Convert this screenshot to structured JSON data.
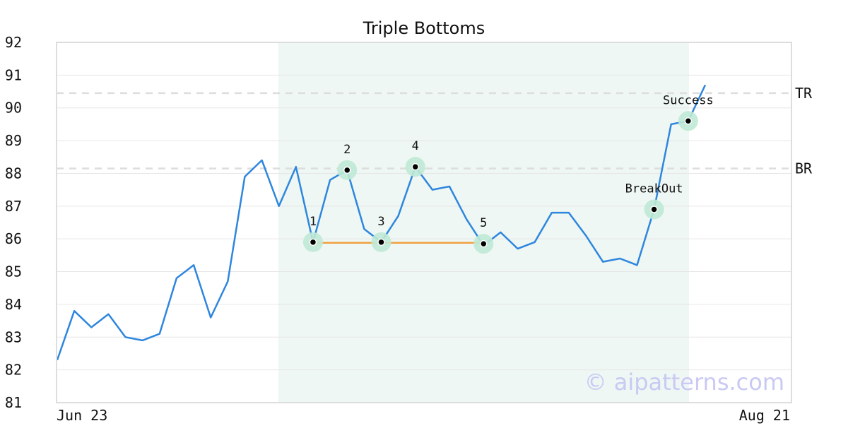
{
  "chart_data": {
    "type": "line",
    "title": "Triple Bottoms",
    "ylim": [
      81,
      92
    ],
    "yticks": [
      "81",
      "82",
      "83",
      "84",
      "85",
      "86",
      "87",
      "88",
      "89",
      "90",
      "91",
      "92"
    ],
    "xtick_labels": [
      "Jun 23",
      "Aug 21"
    ],
    "grid": true,
    "series": [
      {
        "color": "#2e86de",
        "values": [
          82.3,
          83.8,
          83.3,
          83.7,
          83.0,
          82.9,
          83.1,
          84.8,
          85.2,
          83.6,
          84.7,
          87.9,
          88.4,
          87.0,
          88.2,
          85.9,
          87.8,
          88.1,
          86.3,
          85.9,
          86.7,
          88.2,
          87.5,
          87.6,
          86.6,
          85.8,
          86.2,
          85.7,
          85.9,
          86.8,
          86.8,
          86.1,
          85.3,
          85.4,
          85.2,
          86.9,
          89.5,
          89.6,
          90.7
        ]
      }
    ],
    "highlight_region": {
      "start_index": 13,
      "end_index": 37,
      "color": "#eef7f3"
    },
    "reference_lines": [
      {
        "label": "TR",
        "value": 90.45
      },
      {
        "label": "BR",
        "value": 88.15
      }
    ],
    "support_line": {
      "start_index": 15,
      "end_index": 25,
      "value": 85.88,
      "color": "#f0a040"
    },
    "points": [
      {
        "label": "1",
        "index": 15,
        "value": 85.9
      },
      {
        "label": "2",
        "index": 17,
        "value": 88.1
      },
      {
        "label": "3",
        "index": 19,
        "value": 85.9
      },
      {
        "label": "4",
        "index": 21,
        "value": 88.2
      },
      {
        "label": "5",
        "index": 25,
        "value": 85.85
      },
      {
        "label": "BreakOut",
        "index": 35,
        "value": 86.9
      },
      {
        "label": "Success",
        "index": 37,
        "value": 89.6
      }
    ],
    "watermark": "© aipatterns.com"
  }
}
